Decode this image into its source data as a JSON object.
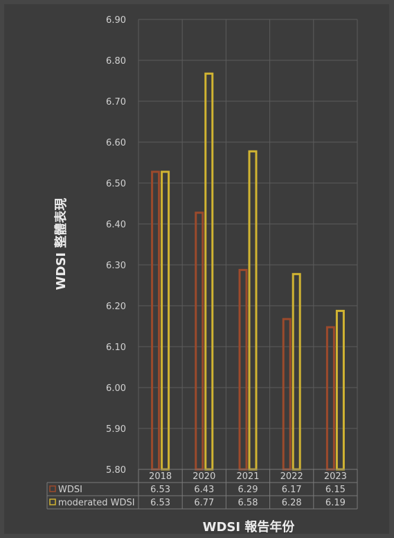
{
  "chart_data": {
    "type": "bar",
    "title": "",
    "xlabel": "WDSI 報告年份",
    "ylabel": "WDSI 整體表現",
    "categories": [
      "2018",
      "2020",
      "2021",
      "2022",
      "2023"
    ],
    "ylim": [
      5.8,
      6.9
    ],
    "yticks": [
      "5.80",
      "5.90",
      "6.00",
      "6.10",
      "6.20",
      "6.30",
      "6.40",
      "6.50",
      "6.60",
      "6.70",
      "6.80",
      "6.90"
    ],
    "grid": true,
    "legend": "data-table",
    "series": [
      {
        "name": "WDSI",
        "values": [
          6.53,
          6.43,
          6.29,
          6.17,
          6.15
        ],
        "labels": [
          "6.53",
          "6.43",
          "6.29",
          "6.17",
          "6.15"
        ],
        "color": "#9c4a2c"
      },
      {
        "name": "moderated WDSI",
        "values": [
          6.53,
          6.77,
          6.58,
          6.28,
          6.19
        ],
        "labels": [
          "6.53",
          "6.77",
          "6.58",
          "6.28",
          "6.19"
        ],
        "color": "#d1b432"
      }
    ],
    "colors": {
      "background": "#464646",
      "grid": "#5c5c5c",
      "text": "#d2d2d2",
      "axis_title": "#ececec"
    }
  }
}
